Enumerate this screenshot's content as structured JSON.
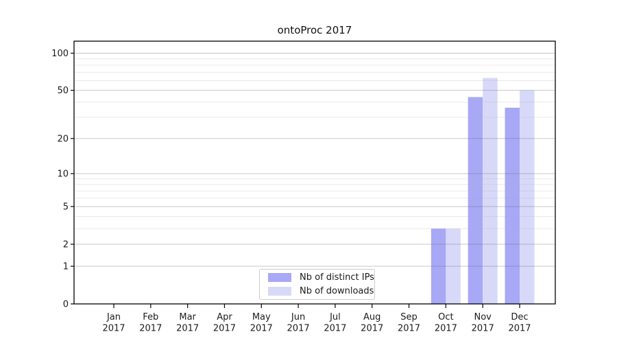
{
  "chart_data": {
    "type": "bar",
    "title": "ontoProc 2017",
    "categories": [
      "Jan",
      "Feb",
      "Mar",
      "Apr",
      "May",
      "Jun",
      "Jul",
      "Aug",
      "Sep",
      "Oct",
      "Nov",
      "Dec"
    ],
    "x_label_line2": "2017",
    "series": [
      {
        "name": "Nb of distinct IPs",
        "color": "#a8a8f6",
        "values": [
          0,
          0,
          0,
          0,
          0,
          0,
          0,
          0,
          0,
          3,
          44,
          36
        ]
      },
      {
        "name": "Nb of downloads",
        "color": "#d8d9f9",
        "values": [
          0,
          0,
          0,
          0,
          0,
          0,
          0,
          0,
          0,
          3,
          63,
          50
        ]
      }
    ],
    "y_axis": {
      "scale": "log1p",
      "ticks": [
        0,
        1,
        2,
        5,
        10,
        20,
        50,
        100
      ],
      "minor_ticks": [
        3,
        4,
        6,
        7,
        8,
        9,
        30,
        40,
        60,
        70,
        80,
        90
      ],
      "max": 125
    },
    "legend_position": "bottom-center",
    "grid": true
  },
  "style": {
    "frame_color": "#000000",
    "text_color": "#1a1a1a",
    "major_grid_color": "rgba(105,105,105,0.38)",
    "minor_grid_color": "rgba(175,175,175,0.28)"
  }
}
